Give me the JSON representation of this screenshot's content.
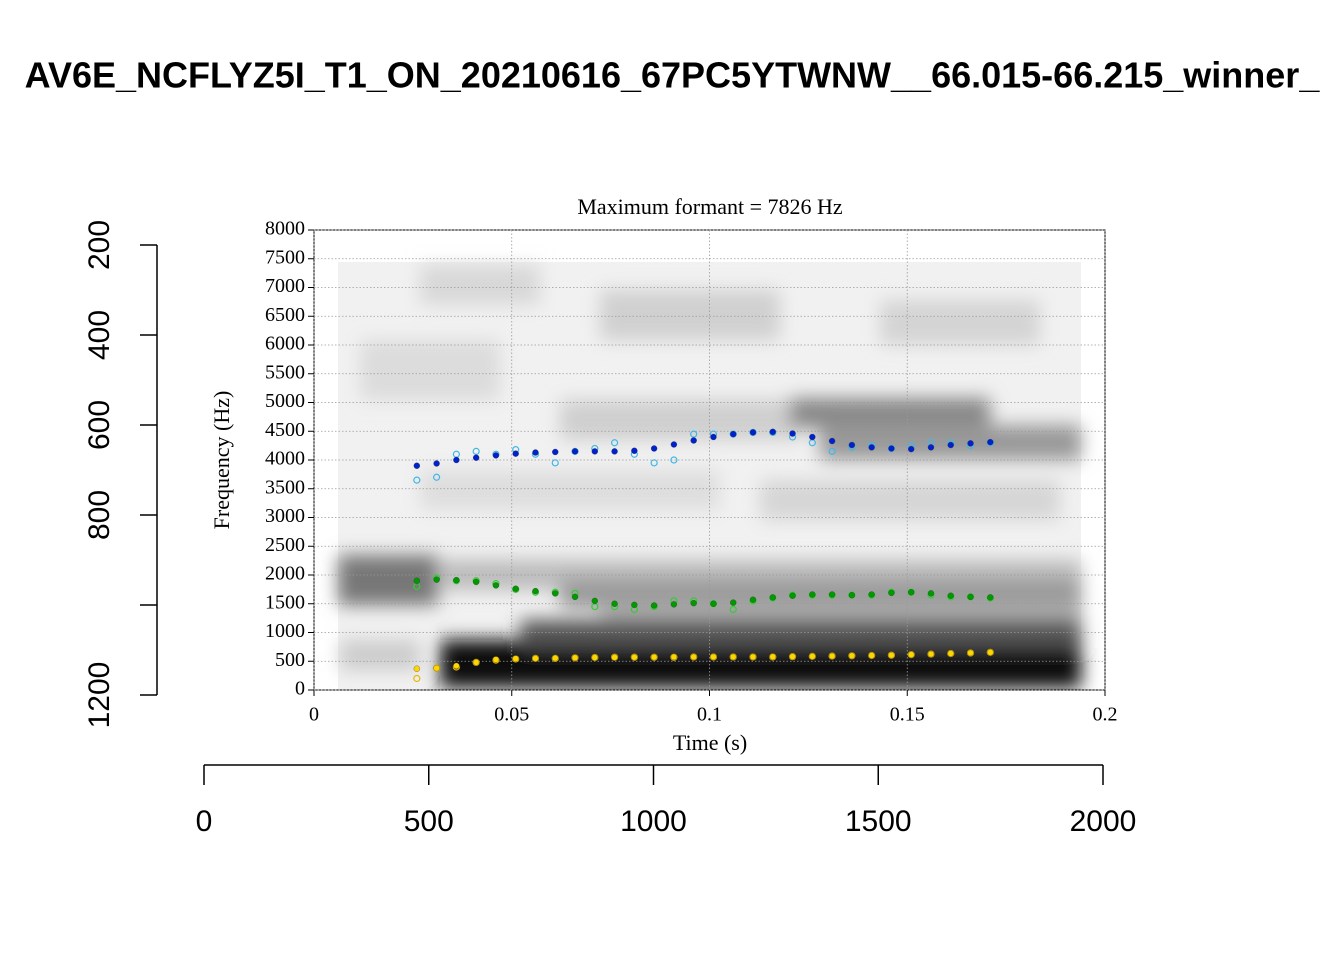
{
  "chart_data": [
    {
      "type": "axes",
      "title": "AV6E_NCFLYZ5I_T1_ON_20210616_67PC5YTWNW__66.015-66.215_winner_",
      "xlim": [
        0,
        2000
      ],
      "xticks": [
        0,
        500,
        1000,
        1500,
        2000
      ],
      "ylim": [
        1200,
        200
      ],
      "yticks": [
        200,
        400,
        600,
        800,
        {
          "value": 1000,
          "label": null
        },
        1200
      ]
    },
    {
      "type": "scatter",
      "title": "Maximum formant = 7826 Hz",
      "x_label": "Time (s)",
      "y_label": "Frequency (Hz)",
      "xlim": [
        0,
        0.2
      ],
      "xticks": [
        0,
        0.05,
        0.1,
        0.15,
        0.2
      ],
      "ylim": [
        0,
        8000
      ],
      "yticks": [
        0,
        500,
        1000,
        1500,
        2000,
        2500,
        3000,
        3500,
        4000,
        4500,
        5000,
        5500,
        6000,
        6500,
        7000,
        7500,
        8000
      ],
      "grid": true,
      "x": [
        0.026,
        0.031,
        0.036,
        0.041,
        0.046,
        0.051,
        0.056,
        0.061,
        0.066,
        0.071,
        0.076,
        0.081,
        0.086,
        0.091,
        0.096,
        0.101,
        0.106,
        0.111,
        0.116,
        0.121,
        0.126,
        0.131,
        0.136,
        0.141,
        0.146,
        0.151,
        0.156,
        0.161,
        0.166,
        0.171
      ],
      "series": [
        {
          "color": "#41b6e6",
          "marker": "open",
          "values": [
            3650,
            3700,
            4100,
            4150,
            4100,
            4180,
            4100,
            3950,
            4150,
            4200,
            4300,
            4100,
            3950,
            4000,
            4450,
            4450,
            4450,
            4480,
            4480,
            4400,
            4300,
            4150,
            4220,
            4250,
            4200,
            4250,
            4300,
            4300,
            4250,
            4300
          ]
        },
        {
          "color": "#0022cc",
          "marker": "filled",
          "values": [
            3900,
            3940,
            4000,
            4040,
            4080,
            4110,
            4130,
            4140,
            4150,
            4150,
            4150,
            4160,
            4200,
            4270,
            4340,
            4400,
            4450,
            4480,
            4490,
            4460,
            4400,
            4330,
            4260,
            4220,
            4200,
            4190,
            4220,
            4260,
            4290,
            4310
          ]
        },
        {
          "color": "#33cc33",
          "marker": "open",
          "values": [
            1800,
            1950,
            1900,
            1900,
            1850,
            1750,
            1700,
            1700,
            1680,
            1450,
            1450,
            1400,
            1450,
            1550,
            1550,
            1500,
            1400,
            1550,
            1600,
            1650,
            1650,
            1650,
            1650,
            1650,
            1700,
            1700,
            1650,
            1620,
            1620,
            1600
          ]
        },
        {
          "color": "#009900",
          "marker": "filled",
          "values": [
            1900,
            1920,
            1910,
            1880,
            1820,
            1760,
            1720,
            1680,
            1620,
            1550,
            1500,
            1480,
            1470,
            1490,
            1510,
            1500,
            1520,
            1570,
            1610,
            1640,
            1660,
            1660,
            1650,
            1660,
            1690,
            1700,
            1680,
            1640,
            1620,
            1610
          ]
        },
        {
          "color": "#e6b800",
          "marker": "open",
          "values": [
            200,
            380,
            400,
            480,
            520,
            540,
            550,
            550,
            560,
            565,
            570,
            570,
            570,
            570,
            575,
            575,
            575,
            575,
            575,
            580,
            585,
            590,
            595,
            600,
            605,
            615,
            625,
            635,
            645,
            655
          ]
        },
        {
          "color": "#ffd700",
          "marker": "filled",
          "values": [
            370,
            380,
            420,
            480,
            530,
            545,
            550,
            555,
            560,
            565,
            568,
            570,
            572,
            575,
            575,
            575,
            575,
            575,
            578,
            580,
            585,
            590,
            595,
            600,
            605,
            615,
            625,
            635,
            645,
            655
          ]
        }
      ]
    }
  ]
}
